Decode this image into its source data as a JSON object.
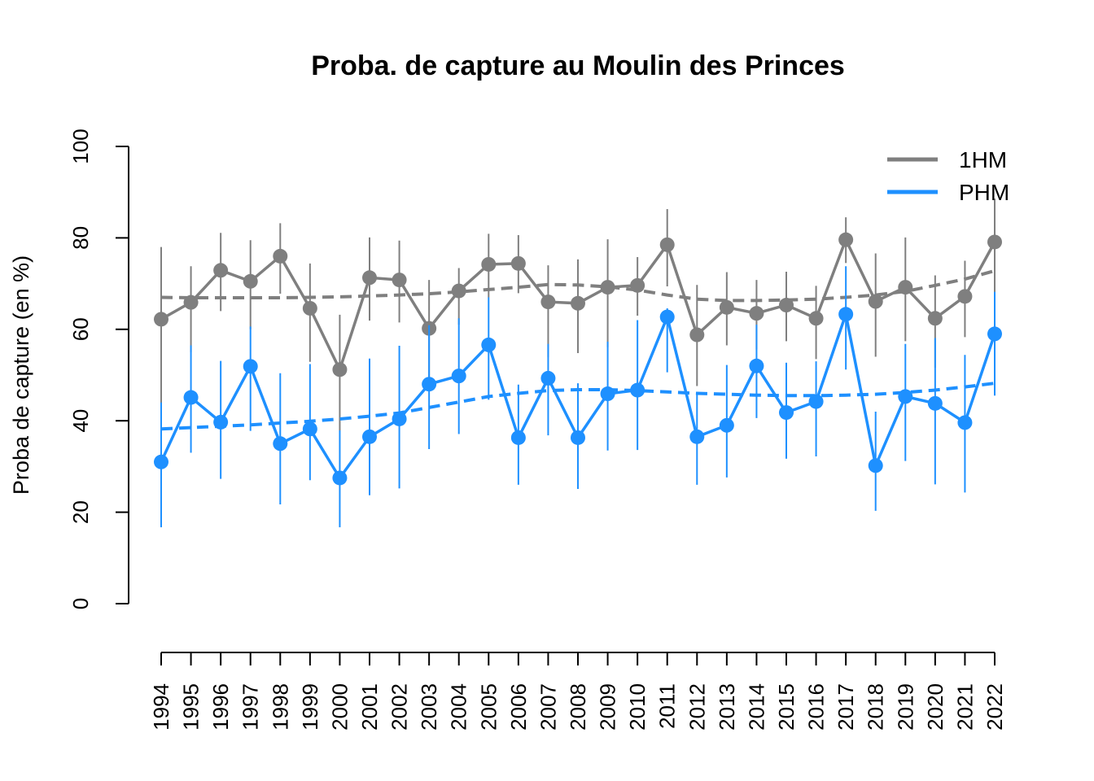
{
  "chart_data": {
    "type": "line",
    "title": "Proba. de capture au Moulin des Princes",
    "xlabel": "",
    "ylabel": "Proba de capture (en %)",
    "ylim": [
      0,
      100
    ],
    "y_ticks": [
      "0",
      "20",
      "40",
      "60",
      "80",
      "100"
    ],
    "categories": [
      "1994",
      "1995",
      "1996",
      "1997",
      "1998",
      "1999",
      "2000",
      "2001",
      "2002",
      "2003",
      "2004",
      "2005",
      "2006",
      "2007",
      "2008",
      "2009",
      "2010",
      "2011",
      "2012",
      "2013",
      "2014",
      "2015",
      "2016",
      "2017",
      "2018",
      "2019",
      "2020",
      "2021",
      "2022"
    ],
    "legend_position": "top-right",
    "grid": false,
    "series": [
      {
        "name": "1HM",
        "color": "#7f7f7f",
        "values": [
          62.2,
          65.9,
          72.9,
          70.5,
          76.0,
          64.6,
          51.2,
          71.3,
          70.8,
          60.2,
          68.4,
          74.2,
          74.4,
          66.0,
          65.7,
          69.2,
          69.6,
          78.5,
          58.8,
          64.8,
          63.5,
          65.3,
          62.4,
          79.6,
          66.1,
          69.2,
          62.4,
          67.2,
          79.1
        ],
        "lower": [
          43.8,
          55.0,
          64.0,
          60.0,
          67.8,
          52.9,
          37.9,
          61.9,
          61.5,
          48.0,
          61.0,
          67.0,
          67.9,
          53.9,
          54.8,
          56.1,
          63.0,
          69.4,
          47.6,
          56.5,
          55.6,
          57.4,
          53.5,
          74.5,
          54.0,
          57.4,
          51.6,
          58.3,
          68.0
        ],
        "upper": [
          78.0,
          73.8,
          81.1,
          79.5,
          83.2,
          74.4,
          63.2,
          80.1,
          79.4,
          70.8,
          73.4,
          80.9,
          80.6,
          74.0,
          75.3,
          79.7,
          75.8,
          86.3,
          69.7,
          72.5,
          70.8,
          72.6,
          69.5,
          84.5,
          76.6,
          80.1,
          71.8,
          75.0,
          88.6
        ],
        "trend": [
          67.0,
          66.9,
          66.9,
          66.9,
          66.9,
          67.0,
          67.1,
          67.3,
          67.5,
          67.8,
          68.2,
          68.7,
          69.2,
          69.8,
          69.7,
          69.3,
          68.6,
          67.5,
          66.6,
          66.3,
          66.3,
          66.4,
          66.6,
          67.0,
          67.5,
          68.3,
          69.6,
          71.0,
          72.8
        ]
      },
      {
        "name": "PHM",
        "color": "#1e90ff",
        "values": [
          31.0,
          45.1,
          39.7,
          51.9,
          35.0,
          38.2,
          27.5,
          36.5,
          40.4,
          48.0,
          49.8,
          56.6,
          36.3,
          49.3,
          36.3,
          45.9,
          46.7,
          62.7,
          36.5,
          39.0,
          52.0,
          41.8,
          44.2,
          63.3,
          30.2,
          45.3,
          43.8,
          39.6,
          59.0
        ],
        "lower": [
          16.7,
          33.0,
          27.3,
          37.8,
          21.7,
          27.0,
          16.7,
          23.7,
          25.2,
          33.8,
          37.1,
          44.6,
          26.0,
          36.8,
          25.1,
          33.5,
          33.6,
          50.6,
          26.0,
          27.6,
          40.6,
          31.7,
          32.2,
          51.2,
          20.3,
          31.2,
          26.1,
          24.3,
          45.5
        ],
        "upper": [
          44.0,
          56.5,
          53.1,
          60.6,
          50.4,
          52.4,
          37.9,
          53.6,
          56.4,
          60.9,
          62.4,
          67.0,
          47.9,
          56.8,
          48.2,
          57.3,
          62.0,
          64.6,
          46.1,
          52.2,
          61.0,
          52.7,
          53.0,
          73.8,
          42.0,
          56.8,
          58.1,
          54.4,
          68.2
        ],
        "trend": [
          38.2,
          38.5,
          38.8,
          39.1,
          39.5,
          39.9,
          40.4,
          41.0,
          41.7,
          42.9,
          44.1,
          45.3,
          46.0,
          46.6,
          46.8,
          46.8,
          46.6,
          46.3,
          46.0,
          45.8,
          45.6,
          45.5,
          45.5,
          45.6,
          45.8,
          46.2,
          46.7,
          47.4,
          48.2
        ]
      }
    ]
  }
}
